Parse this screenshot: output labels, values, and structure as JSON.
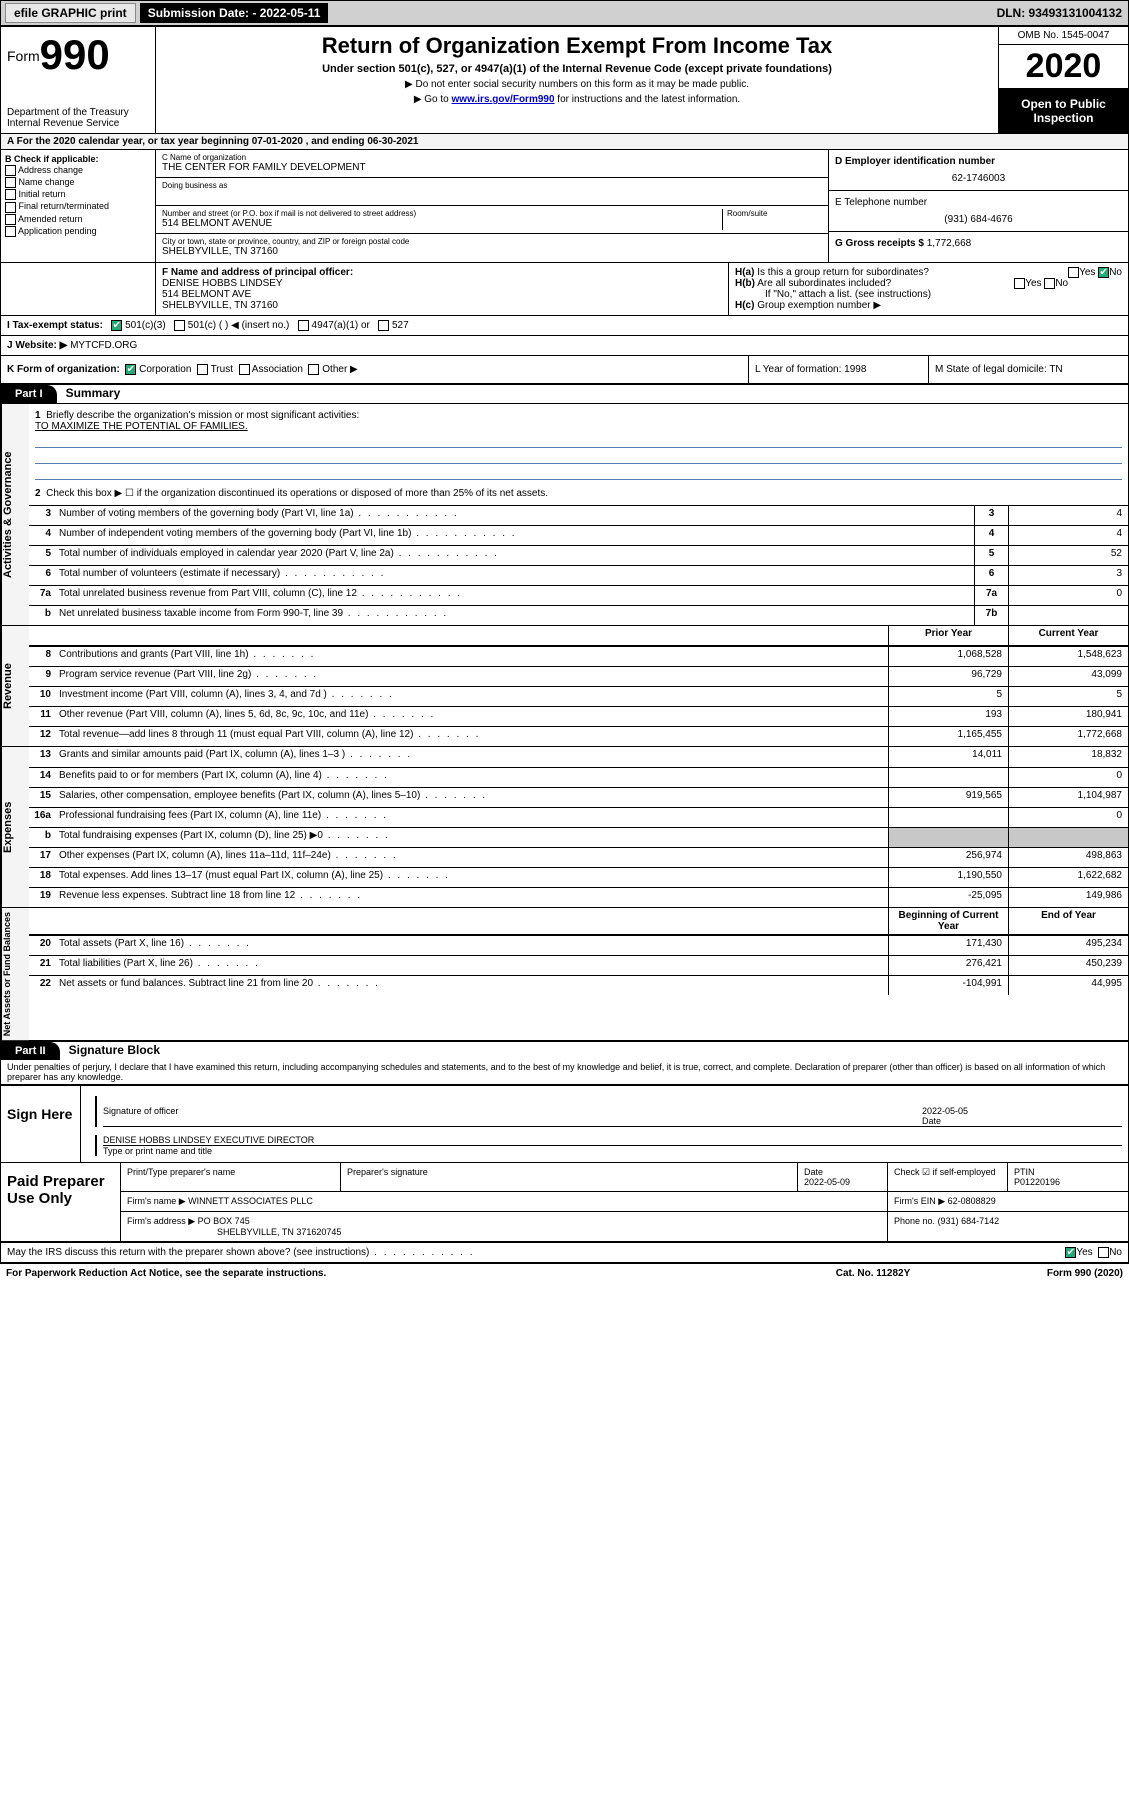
{
  "topbar": {
    "efile": "efile GRAPHIC print",
    "subdate_label": "Submission Date: - 2022-05-11",
    "dln": "DLN: 93493131004132"
  },
  "header": {
    "form_prefix": "Form",
    "form_no": "990",
    "dept": "Department of the Treasury",
    "irs": "Internal Revenue Service",
    "title": "Return of Organization Exempt From Income Tax",
    "sub": "Under section 501(c), 527, or 4947(a)(1) of the Internal Revenue Code (except private foundations)",
    "note1": "▶ Do not enter social security numbers on this form as it may be made public.",
    "note2_pre": "▶ Go to ",
    "note2_link": "www.irs.gov/Form990",
    "note2_post": " for instructions and the latest information.",
    "omb": "OMB No. 1545-0047",
    "year": "2020",
    "otp": "Open to Public Inspection"
  },
  "rowA": "A   For the 2020 calendar year, or tax year beginning 07-01-2020    , and ending 06-30-2021",
  "boxB": {
    "title": "B Check if applicable:",
    "items": [
      "Address change",
      "Name change",
      "Initial return",
      "Final return/terminated",
      "Amended return",
      "Application pending"
    ]
  },
  "boxC": {
    "lbl_name": "C Name of organization",
    "org": "THE CENTER FOR FAMILY DEVELOPMENT",
    "dba_lbl": "Doing business as",
    "addr_lbl": "Number and street (or P.O. box if mail is not delivered to street address)",
    "room_lbl": "Room/suite",
    "addr": "514 BELMONT AVENUE",
    "city_lbl": "City or town, state or province, country, and ZIP or foreign postal code",
    "city": "SHELBYVILLE, TN  37160"
  },
  "boxD": {
    "lbl": "D Employer identification number",
    "val": "62-1746003"
  },
  "boxE": {
    "lbl": "E Telephone number",
    "val": "(931) 684-4676"
  },
  "boxG": {
    "lbl": "G Gross receipts $",
    "val": "1,772,668"
  },
  "boxF": {
    "lbl": "F  Name and address of principal officer:",
    "name": "DENISE HOBBS LINDSEY",
    "addr1": "514 BELMONT AVE",
    "addr2": "SHELBYVILLE, TN  37160"
  },
  "boxH": {
    "a": "Is this a group return for subordinates?",
    "b": "Are all subordinates included?",
    "note": "If \"No,\" attach a list. (see instructions)",
    "c": "Group exemption number ▶"
  },
  "rowI": {
    "lbl": "I     Tax-exempt status:",
    "opts": [
      "501(c)(3)",
      "501(c) (  ) ◀ (insert no.)",
      "4947(a)(1) or",
      "527"
    ]
  },
  "rowJ": {
    "lbl": "J     Website: ▶",
    "val": "MYTCFD.ORG"
  },
  "rowK": {
    "lbl": "K Form of organization:",
    "opts": [
      "Corporation",
      "Trust",
      "Association",
      "Other ▶"
    ],
    "L": "L Year of formation: 1998",
    "M": "M State of legal domicile: TN"
  },
  "part1": {
    "hdr": "Part I",
    "title": "Summary",
    "line1_lbl": "Briefly describe the organization's mission or most significant activities:",
    "line1_val": "TO MAXIMIZE THE POTENTIAL OF FAMILIES.",
    "line2": "Check this box ▶ ☐  if the organization discontinued its operations or disposed of more than 25% of its net assets."
  },
  "sections": {
    "gov": {
      "label": "Activities & Governance",
      "rows": [
        {
          "n": "3",
          "d": "Number of voting members of the governing body (Part VI, line 1a)",
          "box": "3",
          "v2": "4"
        },
        {
          "n": "4",
          "d": "Number of independent voting members of the governing body (Part VI, line 1b)",
          "box": "4",
          "v2": "4"
        },
        {
          "n": "5",
          "d": "Total number of individuals employed in calendar year 2020 (Part V, line 2a)",
          "box": "5",
          "v2": "52"
        },
        {
          "n": "6",
          "d": "Total number of volunteers (estimate if necessary)",
          "box": "6",
          "v2": "3"
        },
        {
          "n": "7a",
          "d": "Total unrelated business revenue from Part VIII, column (C), line 12",
          "box": "7a",
          "v2": "0"
        },
        {
          "n": "b",
          "d": "Net unrelated business taxable income from Form 990-T, line 39",
          "box": "7b",
          "v2": ""
        }
      ]
    },
    "rev": {
      "label": "Revenue",
      "hdr": {
        "c1": "Prior Year",
        "c2": "Current Year"
      },
      "rows": [
        {
          "n": "8",
          "d": "Contributions and grants (Part VIII, line 1h)",
          "v1": "1,068,528",
          "v2": "1,548,623"
        },
        {
          "n": "9",
          "d": "Program service revenue (Part VIII, line 2g)",
          "v1": "96,729",
          "v2": "43,099"
        },
        {
          "n": "10",
          "d": "Investment income (Part VIII, column (A), lines 3, 4, and 7d )",
          "v1": "5",
          "v2": "5"
        },
        {
          "n": "11",
          "d": "Other revenue (Part VIII, column (A), lines 5, 6d, 8c, 9c, 10c, and 11e)",
          "v1": "193",
          "v2": "180,941"
        },
        {
          "n": "12",
          "d": "Total revenue—add lines 8 through 11 (must equal Part VIII, column (A), line 12)",
          "v1": "1,165,455",
          "v2": "1,772,668"
        }
      ]
    },
    "exp": {
      "label": "Expenses",
      "rows": [
        {
          "n": "13",
          "d": "Grants and similar amounts paid (Part IX, column (A), lines 1–3 )",
          "v1": "14,011",
          "v2": "18,832"
        },
        {
          "n": "14",
          "d": "Benefits paid to or for members (Part IX, column (A), line 4)",
          "v1": "",
          "v2": "0"
        },
        {
          "n": "15",
          "d": "Salaries, other compensation, employee benefits (Part IX, column (A), lines 5–10)",
          "v1": "919,565",
          "v2": "1,104,987"
        },
        {
          "n": "16a",
          "d": "Professional fundraising fees (Part IX, column (A), line 11e)",
          "v1": "",
          "v2": "0"
        },
        {
          "n": "b",
          "d": "Total fundraising expenses (Part IX, column (D), line 25) ▶0",
          "v1": "shade",
          "v2": "shade"
        },
        {
          "n": "17",
          "d": "Other expenses (Part IX, column (A), lines 11a–11d, 11f–24e)",
          "v1": "256,974",
          "v2": "498,863"
        },
        {
          "n": "18",
          "d": "Total expenses. Add lines 13–17 (must equal Part IX, column (A), line 25)",
          "v1": "1,190,550",
          "v2": "1,622,682"
        },
        {
          "n": "19",
          "d": "Revenue less expenses. Subtract line 18 from line 12",
          "v1": "-25,095",
          "v2": "149,986"
        }
      ]
    },
    "net": {
      "label": "Net Assets or Fund Balances",
      "hdr": {
        "c1": "Beginning of Current Year",
        "c2": "End of Year"
      },
      "rows": [
        {
          "n": "20",
          "d": "Total assets (Part X, line 16)",
          "v1": "171,430",
          "v2": "495,234"
        },
        {
          "n": "21",
          "d": "Total liabilities (Part X, line 26)",
          "v1": "276,421",
          "v2": "450,239"
        },
        {
          "n": "22",
          "d": "Net assets or fund balances. Subtract line 21 from line 20",
          "v1": "-104,991",
          "v2": "44,995"
        }
      ]
    }
  },
  "part2": {
    "hdr": "Part II",
    "title": "Signature Block",
    "decl": "Under penalties of perjury, I declare that I have examined this return, including accompanying schedules and statements, and to the best of my knowledge and belief, it is true, correct, and complete. Declaration of preparer (other than officer) is based on all information of which preparer has any knowledge."
  },
  "sign": {
    "here": "Sign Here",
    "sig_lbl": "Signature of officer",
    "date_lbl": "Date",
    "date": "2022-05-05",
    "name": "DENISE HOBBS LINDSEY  EXECUTIVE DIRECTOR",
    "name_lbl": "Type or print name and title"
  },
  "prep": {
    "here": "Paid Preparer Use Only",
    "h": [
      "Print/Type preparer's name",
      "Preparer's signature",
      "Date",
      "",
      "PTIN"
    ],
    "date": "2022-05-09",
    "self": "Check ☑ if self-employed",
    "ptin": "P01220196",
    "firm_lbl": "Firm's name    ▶",
    "firm": "WINNETT ASSOCIATES PLLC",
    "ein_lbl": "Firm's EIN ▶",
    "ein": "62-0808829",
    "addr_lbl": "Firm's address ▶",
    "addr1": "PO BOX 745",
    "addr2": "SHELBYVILLE, TN  371620745",
    "phone_lbl": "Phone no.",
    "phone": "(931) 684-7142"
  },
  "discuss": "May the IRS discuss this return with the preparer shown above? (see instructions)",
  "footer": {
    "left": "For Paperwork Reduction Act Notice, see the separate instructions.",
    "mid": "Cat. No. 11282Y",
    "right": "Form 990 (2020)"
  }
}
